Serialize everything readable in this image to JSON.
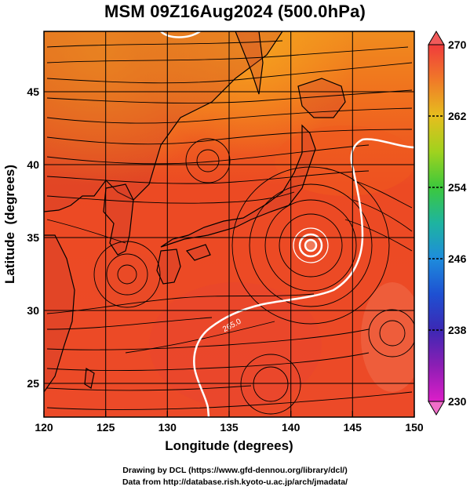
{
  "title": "MSM 09Z16Aug2024 (500.0hPa)",
  "map": {
    "xlabel": "Longitude (degrees)",
    "ylabel": "Latitude  (degrees)",
    "xticks": [
      120,
      125,
      130,
      135,
      140,
      145,
      150
    ],
    "yticks": [
      25,
      30,
      35,
      40,
      45
    ],
    "xlim": [
      120,
      150
    ],
    "ylim": [
      22.4,
      47.6
    ],
    "field": "temperature (shaded) with wind streamlines",
    "contour_label": "265.0",
    "typhoon_center": {
      "lon": 141.6,
      "lat": 34.5
    }
  },
  "colorbar": {
    "labels": [
      "270",
      "262",
      "254",
      "246",
      "238",
      "230"
    ],
    "min": 230,
    "max": 270,
    "colors": [
      "#f03c3c",
      "#f07a28",
      "#e6be1e",
      "#a0d21e",
      "#3cc83c",
      "#1eb4a0",
      "#1e8cdc",
      "#1e50d2",
      "#3c28b4",
      "#8c1eb4",
      "#dc1ec8"
    ]
  },
  "credits": {
    "line1": "Drawing by DCL (https://www.gfd-dennou.org/library/dcl/)",
    "line2": "Data from http://database.rish.kyoto-u.ac.jp/arch/jmadata/"
  }
}
